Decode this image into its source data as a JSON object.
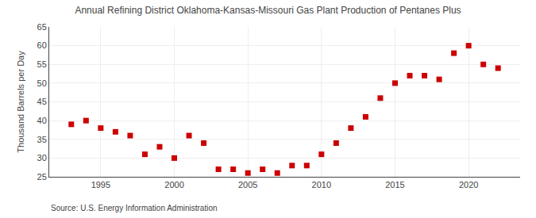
{
  "chart_data": {
    "type": "scatter",
    "title": "Annual Refining District Oklahoma-Kansas-Missouri Gas Plant Production of Pentanes Plus",
    "ylabel": "Thousand Barrels per Day",
    "annotations": [
      "Source: U.S. Energy Information Administration"
    ],
    "x": [
      1993,
      1994,
      1995,
      1996,
      1997,
      1998,
      1999,
      2000,
      2001,
      2002,
      2003,
      2004,
      2005,
      2006,
      2007,
      2008,
      2009,
      2010,
      2011,
      2012,
      2013,
      2014,
      2015,
      2016,
      2017,
      2018,
      2019,
      2020,
      2021,
      2022
    ],
    "values": [
      39,
      40,
      38,
      37,
      36,
      31,
      33,
      30,
      36,
      34,
      27,
      27,
      26,
      27,
      26,
      28,
      28,
      31,
      34,
      38,
      41,
      46,
      50,
      52,
      52,
      51,
      58,
      60,
      55,
      54
    ],
    "color": "#cc0000",
    "marker": "square",
    "xlim": [
      1991.5,
      2023.5
    ],
    "xticks": [
      1995,
      2000,
      2005,
      2010,
      2015,
      2020
    ],
    "ylim": [
      25,
      65
    ],
    "yticks": [
      25,
      30,
      35,
      40,
      45,
      50,
      55,
      60,
      65
    ],
    "grid": true
  }
}
